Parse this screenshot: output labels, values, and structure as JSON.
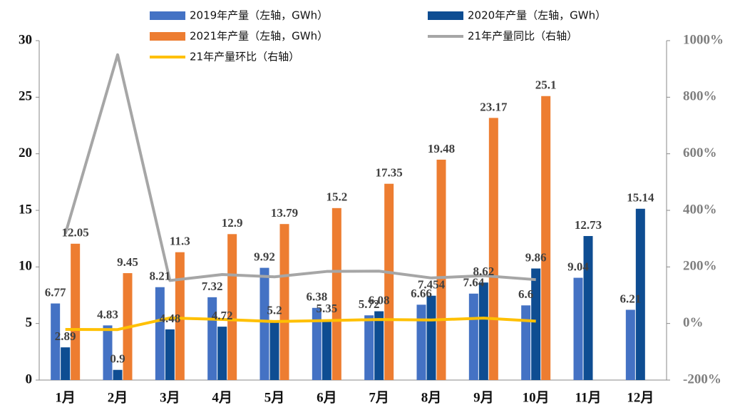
{
  "chart_data": {
    "type": "bar-line",
    "categories": [
      "1月",
      "2月",
      "3月",
      "4月",
      "5月",
      "6月",
      "7月",
      "8月",
      "9月",
      "10月",
      "11月",
      "12月"
    ],
    "series": [
      {
        "name": "2019年产量（左轴，GWh）",
        "kind": "bar",
        "color": "#4472c4",
        "values": [
          6.77,
          4.83,
          8.21,
          7.32,
          9.92,
          6.38,
          5.72,
          6.66,
          7.64,
          6.6,
          9.04,
          6.21
        ]
      },
      {
        "name": "2020年产量（左轴，GWh）",
        "kind": "bar",
        "color": "#0e4d92",
        "values": [
          2.89,
          0.9,
          4.48,
          4.72,
          5.2,
          5.35,
          6.08,
          7.454,
          8.62,
          9.86,
          12.73,
          15.14
        ]
      },
      {
        "name": "2021年产量（左轴，GWh）",
        "kind": "bar",
        "color": "#ed7d31",
        "values": [
          12.05,
          9.45,
          11.3,
          12.9,
          13.79,
          15.2,
          17.35,
          19.48,
          23.17,
          25.1,
          null,
          null
        ]
      },
      {
        "name": "21年产量同比（右轴）",
        "kind": "line",
        "axis": "y2",
        "color": "#a6a6a6",
        "values": [
          317,
          950,
          152,
          173,
          165,
          184,
          185,
          161,
          169,
          155,
          null,
          null
        ]
      },
      {
        "name": "21年产量环比（右轴）",
        "kind": "line",
        "axis": "y2",
        "color": "#ffc000",
        "values": [
          -21,
          -21.6,
          19.6,
          14.2,
          6.9,
          10.2,
          14.1,
          12.3,
          18.9,
          8.3,
          null,
          null
        ]
      }
    ],
    "ylim": [
      0,
      30
    ],
    "yticks": [
      0,
      5,
      10,
      15,
      20,
      25,
      30
    ],
    "y2lim": [
      -200,
      1000
    ],
    "y2ticks": [
      {
        "value": -200,
        "label": "-200%"
      },
      {
        "value": 0,
        "label": "0%"
      },
      {
        "value": 200,
        "label": "200%"
      },
      {
        "value": 400,
        "label": "400%"
      },
      {
        "value": 600,
        "label": "600%"
      },
      {
        "value": 800,
        "label": "800%"
      },
      {
        "value": 1000,
        "label": "1000%"
      }
    ],
    "grid": false
  }
}
